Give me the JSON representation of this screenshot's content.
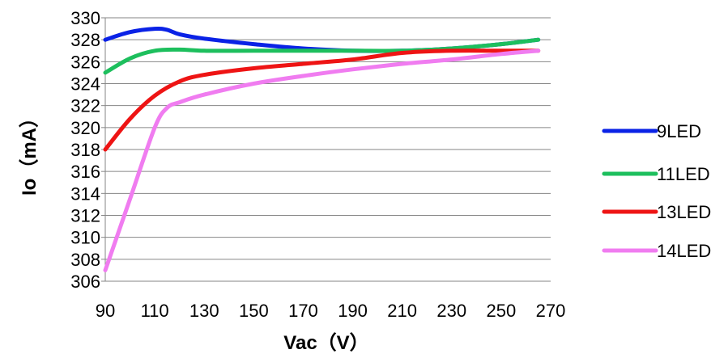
{
  "chart_data": {
    "type": "line",
    "title": "",
    "xlabel": "Vac（V）",
    "ylabel": "Io（mA）",
    "xlim": [
      90,
      270
    ],
    "ylim": [
      306,
      330
    ],
    "x_ticks": [
      "90",
      "110",
      "130",
      "150",
      "170",
      "190",
      "210",
      "230",
      "250",
      "270"
    ],
    "y_ticks": [
      "306",
      "308",
      "310",
      "312",
      "314",
      "316",
      "318",
      "320",
      "322",
      "324",
      "326",
      "328",
      "330"
    ],
    "grid": "horizontal",
    "legend_position": "right",
    "series": [
      {
        "name": "9LED",
        "color": "#0a22e6",
        "points": [
          [
            90,
            328.0
          ],
          [
            100,
            328.7
          ],
          [
            110,
            329.0
          ],
          [
            115,
            328.9
          ],
          [
            120,
            328.5
          ],
          [
            130,
            328.1
          ],
          [
            150,
            327.6
          ],
          [
            170,
            327.2
          ],
          [
            190,
            327.0
          ],
          [
            210,
            327.0
          ],
          [
            230,
            327.2
          ],
          [
            250,
            327.6
          ],
          [
            265,
            328.0
          ]
        ]
      },
      {
        "name": "11LED",
        "color": "#1dbf5d",
        "points": [
          [
            90,
            325.0
          ],
          [
            100,
            326.3
          ],
          [
            110,
            327.0
          ],
          [
            120,
            327.1
          ],
          [
            130,
            327.0
          ],
          [
            150,
            327.0
          ],
          [
            170,
            327.0
          ],
          [
            190,
            327.0
          ],
          [
            210,
            327.0
          ],
          [
            230,
            327.2
          ],
          [
            250,
            327.6
          ],
          [
            265,
            328.0
          ]
        ]
      },
      {
        "name": "13LED",
        "color": "#ee1414",
        "points": [
          [
            90,
            318.0
          ],
          [
            100,
            320.8
          ],
          [
            110,
            322.9
          ],
          [
            120,
            324.2
          ],
          [
            130,
            324.8
          ],
          [
            150,
            325.4
          ],
          [
            170,
            325.8
          ],
          [
            190,
            326.2
          ],
          [
            210,
            326.8
          ],
          [
            230,
            327.0
          ],
          [
            250,
            327.0
          ],
          [
            265,
            327.0
          ]
        ]
      },
      {
        "name": "14LED",
        "color": "#f07cf0",
        "points": [
          [
            90,
            307.0
          ],
          [
            100,
            313.5
          ],
          [
            110,
            320.0
          ],
          [
            115,
            321.8
          ],
          [
            120,
            322.3
          ],
          [
            130,
            323.0
          ],
          [
            150,
            324.0
          ],
          [
            170,
            324.7
          ],
          [
            190,
            325.3
          ],
          [
            210,
            325.8
          ],
          [
            230,
            326.2
          ],
          [
            250,
            326.7
          ],
          [
            265,
            327.0
          ]
        ]
      }
    ]
  }
}
